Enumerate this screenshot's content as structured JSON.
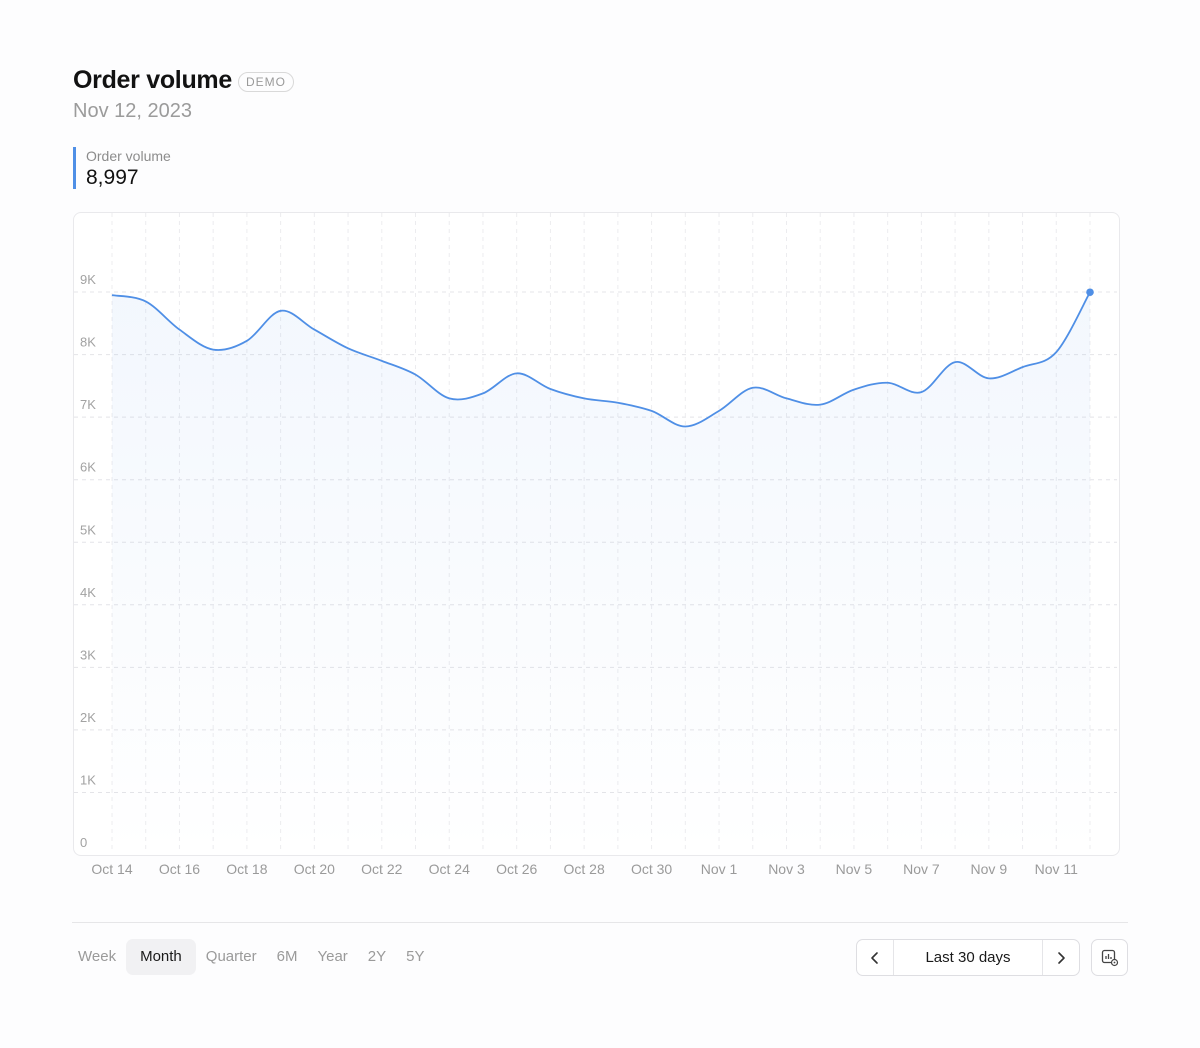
{
  "header": {
    "title": "Order volume",
    "badge": "DEMO",
    "date": "Nov 12, 2023"
  },
  "metric": {
    "label": "Order volume",
    "value": "8,997",
    "accent_color": "#4f8fe6"
  },
  "chart_data": {
    "type": "area",
    "ylim": [
      0,
      10000
    ],
    "y_ticks": [
      "0",
      "1K",
      "2K",
      "3K",
      "4K",
      "5K",
      "6K",
      "7K",
      "8K",
      "9K"
    ],
    "y_tick_values": [
      0,
      1000,
      2000,
      3000,
      4000,
      5000,
      6000,
      7000,
      8000,
      9000
    ],
    "x_tick_labels": [
      "Oct 14",
      "Oct 16",
      "Oct 18",
      "Oct 20",
      "Oct 22",
      "Oct 24",
      "Oct 26",
      "Oct 28",
      "Oct 30",
      "Nov 1",
      "Nov 3",
      "Nov 5",
      "Nov 7",
      "Nov 9",
      "Nov 11"
    ],
    "x": [
      "Oct 14",
      "Oct 15",
      "Oct 16",
      "Oct 17",
      "Oct 18",
      "Oct 19",
      "Oct 20",
      "Oct 21",
      "Oct 22",
      "Oct 23",
      "Oct 24",
      "Oct 25",
      "Oct 26",
      "Oct 27",
      "Oct 28",
      "Oct 29",
      "Oct 30",
      "Oct 31",
      "Nov 1",
      "Nov 2",
      "Nov 3",
      "Nov 4",
      "Nov 5",
      "Nov 6",
      "Nov 7",
      "Nov 8",
      "Nov 9",
      "Nov 10",
      "Nov 11",
      "Nov 12"
    ],
    "series": [
      {
        "values": [
          8950,
          8850,
          8400,
          8080,
          8220,
          8700,
          8400,
          8100,
          7900,
          7680,
          7300,
          7380,
          7700,
          7450,
          7300,
          7230,
          7100,
          6850,
          7100,
          7470,
          7300,
          7200,
          7440,
          7550,
          7400,
          7880,
          7620,
          7800,
          8040,
          8997
        ],
        "color": "#4f8fe6"
      }
    ],
    "grid": true,
    "legend": "none"
  },
  "controls": {
    "ranges": [
      "Week",
      "Month",
      "Quarter",
      "6M",
      "Year",
      "2Y",
      "5Y"
    ],
    "active_range": "Month",
    "period_label": "Last 30 days",
    "prev_icon": "chevron-left-icon",
    "next_icon": "chevron-right-icon",
    "settings_icon": "chart-settings-icon"
  }
}
